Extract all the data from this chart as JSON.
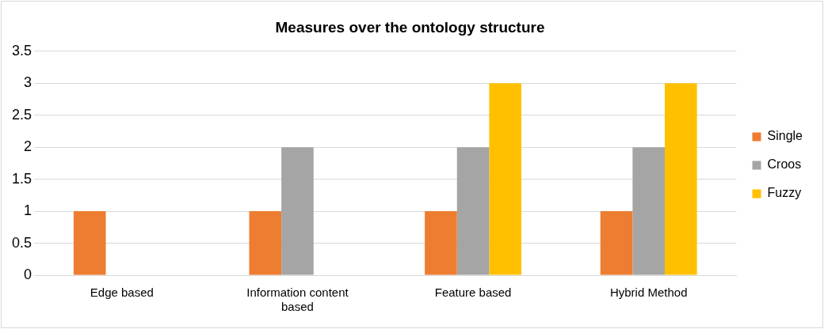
{
  "chart_data": {
    "type": "bar",
    "title": "Measures over the ontology structure",
    "categories": [
      "Edge based",
      "Information content based",
      "Feature based",
      "Hybrid Method"
    ],
    "series": [
      {
        "name": "Single",
        "color": "#ed7d31",
        "values": [
          1,
          1,
          1,
          1
        ]
      },
      {
        "name": "Croos",
        "color": "#a5a5a5",
        "values": [
          null,
          2,
          2,
          2
        ]
      },
      {
        "name": "Fuzzy",
        "color": "#ffc000",
        "values": [
          null,
          null,
          3,
          3
        ]
      }
    ],
    "ylim": [
      0,
      3.5
    ],
    "yticks": [
      0,
      0.5,
      1,
      1.5,
      2,
      2.5,
      3,
      3.5
    ],
    "grid": "y",
    "legend": "right"
  }
}
